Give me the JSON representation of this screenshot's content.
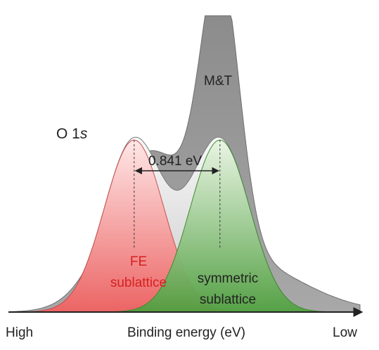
{
  "chart_data": {
    "type": "area",
    "title": "",
    "xlabel": "Binding energy (eV)",
    "ylabel": "",
    "x_axis_ends": {
      "left": "High",
      "right": "Low"
    },
    "grid": false,
    "legend": "none",
    "spectrum_label": {
      "prefix": "O 1",
      "italic": "s"
    },
    "peak_separation": {
      "value_label": "0.841 eV"
    },
    "series": [
      {
        "name": "M&T",
        "color": "#9a9a9a",
        "peaks": [
          {
            "center": 0.39,
            "amplitude": 0.47,
            "width": 0.11
          },
          {
            "center": 0.6,
            "amplitude": 0.93,
            "width": 0.055
          },
          {
            "center": 0.64,
            "amplitude": 0.18,
            "width": 0.18
          }
        ]
      },
      {
        "name": "total",
        "color": "#eeeeee",
        "peaks": [
          {
            "center": 0.355,
            "amplitude": 0.58,
            "width": 0.085
          },
          {
            "center": 0.6,
            "amplitude": 0.58,
            "width": 0.085
          }
        ]
      },
      {
        "name": "FE sublattice",
        "color": "#f07878",
        "label_color": "#d62020",
        "peaks": [
          {
            "center": 0.355,
            "amplitude": 0.58,
            "width": 0.085
          }
        ]
      },
      {
        "name": "symmetric sublattice",
        "color": "#5aa848",
        "label_color": "#222222",
        "peaks": [
          {
            "center": 0.6,
            "amplitude": 0.58,
            "width": 0.085
          }
        ]
      }
    ],
    "x_range": [
      0,
      1
    ],
    "y_range": [
      0,
      1
    ]
  },
  "labels": {
    "mt": "M&T",
    "fe_line1": "FE",
    "fe_line2": "sublattice",
    "sym_line1": "symmetric",
    "sym_line2": "sublattice"
  }
}
